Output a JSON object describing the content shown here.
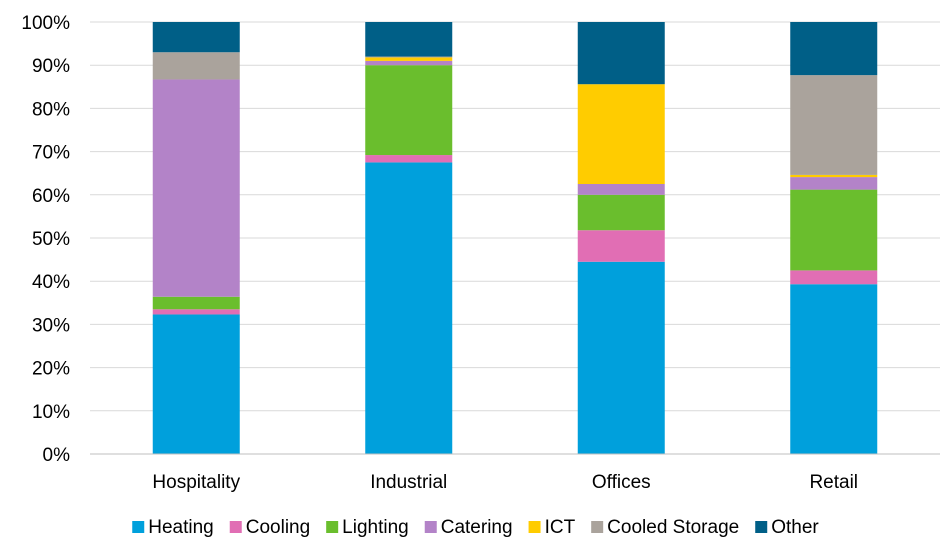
{
  "chart_data": {
    "type": "bar",
    "stacked": true,
    "percent": true,
    "categories": [
      "Hospitality",
      "Industrial",
      "Offices",
      "Retail"
    ],
    "series": [
      {
        "name": "Heating",
        "color": "#00a0dc",
        "values": [
          32.3,
          67.5,
          44.5,
          39.3
        ]
      },
      {
        "name": "Cooling",
        "color": "#e16eb4",
        "values": [
          1.2,
          1.7,
          7.3,
          3.2
        ]
      },
      {
        "name": "Lighting",
        "color": "#6abe2d",
        "values": [
          2.9,
          20.8,
          8.2,
          18.7
        ]
      },
      {
        "name": "Catering",
        "color": "#b383c8",
        "values": [
          50.3,
          1.0,
          2.5,
          2.9
        ]
      },
      {
        "name": "ICT",
        "color": "#ffcc00",
        "values": [
          0.0,
          0.8,
          23.1,
          0.5
        ]
      },
      {
        "name": "Cooled Storage",
        "color": "#aaa39c",
        "values": [
          6.3,
          0.2,
          0.0,
          23.1
        ]
      },
      {
        "name": "Other",
        "color": "#005f87",
        "values": [
          7.0,
          8.0,
          14.4,
          12.3
        ]
      }
    ],
    "yticks": [
      "0%",
      "10%",
      "20%",
      "30%",
      "40%",
      "50%",
      "60%",
      "70%",
      "80%",
      "90%",
      "100%"
    ],
    "ylim": [
      0,
      100
    ],
    "grid": true,
    "legend_position": "bottom"
  }
}
